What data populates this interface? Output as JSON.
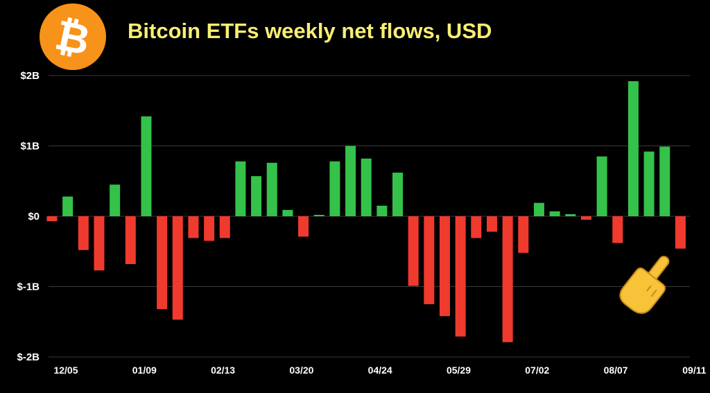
{
  "title": "Bitcoin ETFs weekly net flows, USD",
  "logo": {
    "icon": "bitcoin-logo-icon",
    "color": "#f7931a",
    "symbol": "₿"
  },
  "pointer": {
    "icon": "pointing-hand-icon"
  },
  "colors": {
    "positive": "#34c24a",
    "negative": "#f03a2e",
    "background": "#000000",
    "grid": "#3a3a3a"
  },
  "chart_data": {
    "type": "bar",
    "title": "Bitcoin ETFs weekly net flows, USD",
    "xlabel": "",
    "ylabel": "",
    "ylim": [
      -2,
      2
    ],
    "y_unit": "USD billions",
    "yticks": [
      {
        "value": 2,
        "label": "$2B"
      },
      {
        "value": 1,
        "label": "$1B"
      },
      {
        "value": 0,
        "label": "$0"
      },
      {
        "value": -1,
        "label": "$-1B"
      },
      {
        "value": -2,
        "label": "$-2B"
      }
    ],
    "x_tick_labels": [
      "12/05",
      "01/09",
      "02/13",
      "03/20",
      "04/24",
      "05/29",
      "07/02",
      "08/07",
      "09/11"
    ],
    "x_tick_every": 5,
    "grid": true,
    "values": [
      -0.07,
      0.28,
      -0.48,
      -0.77,
      0.45,
      -0.68,
      1.42,
      -1.32,
      -1.47,
      -0.31,
      -0.35,
      -0.31,
      0.78,
      0.57,
      0.76,
      0.09,
      -0.29,
      0.02,
      0.78,
      1.0,
      0.82,
      0.15,
      0.62,
      -0.99,
      -1.25,
      -1.42,
      -1.71,
      -0.31,
      -0.22,
      -1.79,
      -0.52,
      0.19,
      0.07,
      0.03,
      -0.05,
      0.85,
      -0.38,
      1.92,
      0.92,
      0.99,
      -0.46
    ]
  }
}
